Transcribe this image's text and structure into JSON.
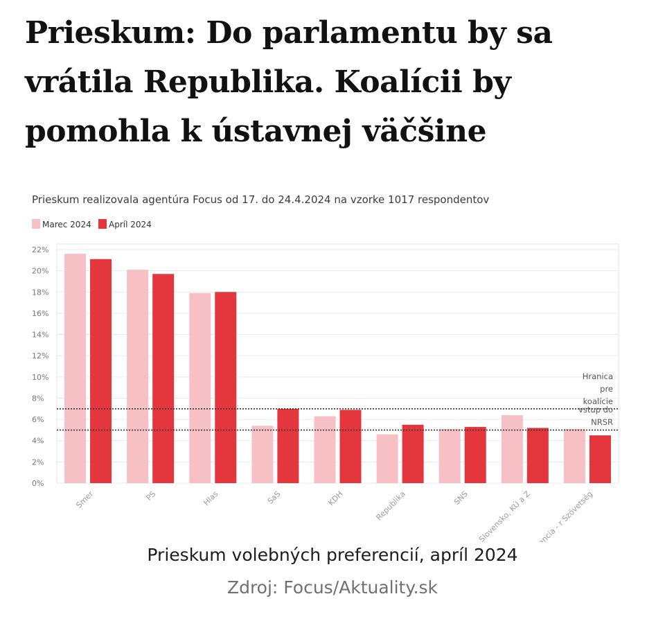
{
  "article": {
    "headline": "Prieskum: Do parlamentu by sa vrátila Republika. Koalícii by pomohla k ústavnej väčšine",
    "caption": "Prieskum volebných preferencií, apríl 2024",
    "source": "Zdroj: Focus/Aktuality.sk"
  },
  "colors": {
    "series_march": "#f7c0c4",
    "series_april": "#e3363d",
    "axis_text": "#777777",
    "grid": "#eaeaea"
  },
  "chart_data": {
    "type": "bar",
    "subtitle": "Prieskum realizovala agentúra Focus od 17. do 24.4.2024 na vzorke 1017 respondentov",
    "categories": [
      "Smer",
      "PS",
      "Hlas",
      "SaS",
      "KDH",
      "Republika",
      "SNS",
      "Maďarská aliancia - Magyar Szövetség",
      "Demokracia Slovensko, KÚ a Z"
    ],
    "category_labels_visible": [
      "Smer",
      "PS",
      "Hlas",
      "SaS",
      "KDH",
      "Republika",
      "SNS",
      "cia Slovensko, KÚ a Z",
      "rská aliancia - r Szövetség"
    ],
    "series": [
      {
        "name": "Marec 2024",
        "color": "#f7c0c4",
        "values": [
          21.6,
          20.1,
          17.9,
          5.4,
          6.3,
          4.6,
          5.1,
          6.4,
          5.1
        ]
      },
      {
        "name": "Apríl 2024",
        "color": "#e3363d",
        "values": [
          21.1,
          19.7,
          18.0,
          7.0,
          6.9,
          5.5,
          5.3,
          5.2,
          4.5
        ]
      }
    ],
    "ylim": [
      0,
      22
    ],
    "yticks": [
      0,
      2,
      4,
      6,
      8,
      10,
      12,
      14,
      16,
      18,
      20,
      22
    ],
    "ytick_labels": [
      "0%",
      "2%",
      "4%",
      "6%",
      "8%",
      "10%",
      "12%",
      "14%",
      "16%",
      "18%",
      "20%",
      "22%"
    ],
    "thresholds": [
      {
        "value": 7,
        "label": "Hranica pre koalície"
      },
      {
        "value": 5,
        "label": "vstup do NRSR"
      }
    ],
    "threshold_label_lines": [
      "Hranica",
      "pre",
      "koalície",
      "vstup do",
      "NRSR"
    ],
    "legend_position": "top-left",
    "grid": "horizontal"
  }
}
